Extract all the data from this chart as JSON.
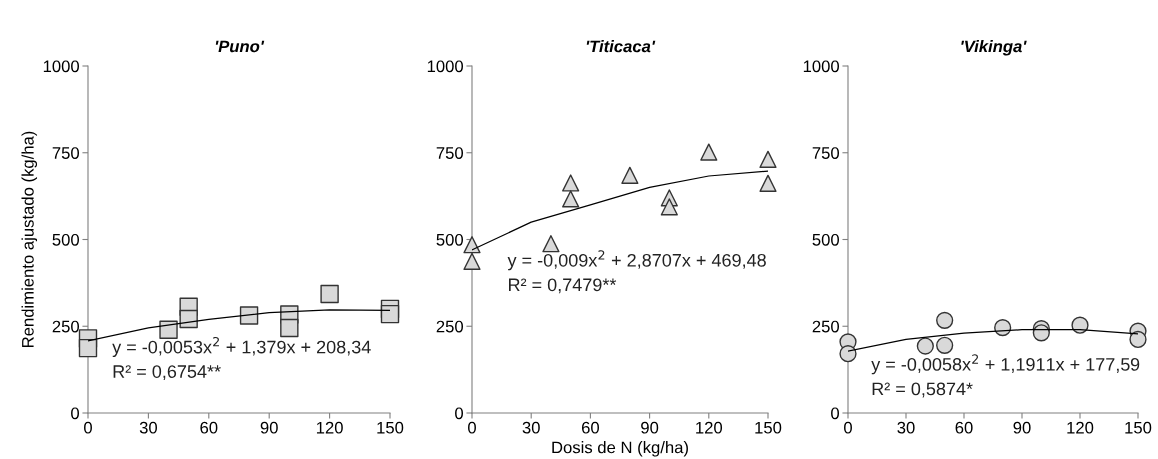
{
  "chart_data": [
    {
      "type": "scatter",
      "title": "'Puno'",
      "ylabel": "Rendimiento ajustado (kg/ha)",
      "xlim": [
        0,
        150
      ],
      "xticks": [
        0,
        30,
        60,
        90,
        120,
        150
      ],
      "ylim": [
        0,
        1000
      ],
      "yticks": [
        0,
        250,
        500,
        750,
        1000
      ],
      "grid": false,
      "legend": false,
      "series": [
        {
          "type": "scatter",
          "marker": "square",
          "color": "#d9d9d9",
          "x": [
            0,
            0,
            40,
            50,
            50,
            80,
            100,
            100,
            120,
            150,
            150
          ],
          "values": [
            215,
            187,
            240,
            306,
            271,
            281,
            284,
            245,
            343,
            300,
            285
          ]
        },
        {
          "type": "line",
          "marker": "none",
          "color": "#000000",
          "x": [
            0,
            30,
            60,
            90,
            120,
            150
          ],
          "values": [
            208,
            245,
            270,
            289,
            297,
            296
          ]
        }
      ],
      "annotations": [
        "y = -0,0053x$^{2}$ + 1,379x + 208,34",
        "R² = 0,6754**"
      ]
    },
    {
      "type": "scatter",
      "title": "'Titicaca'",
      "xlabel": "Dosis de N (kg/ha)",
      "xlim": [
        0,
        150
      ],
      "xticks": [
        0,
        30,
        60,
        90,
        120,
        150
      ],
      "ylim": [
        0,
        1000
      ],
      "yticks": [
        0,
        250,
        500,
        750,
        1000
      ],
      "grid": false,
      "legend": false,
      "series": [
        {
          "type": "scatter",
          "marker": "triangle",
          "color": "#d9d9d9",
          "x": [
            0,
            0,
            40,
            50,
            50,
            80,
            100,
            100,
            120,
            150,
            150
          ],
          "values": [
            485,
            437,
            488,
            663,
            617,
            685,
            620,
            594,
            752,
            731,
            662
          ]
        },
        {
          "type": "line",
          "marker": "none",
          "color": "#000000",
          "x": [
            0,
            30,
            60,
            90,
            120,
            150
          ],
          "values": [
            470,
            550,
            600,
            650,
            683,
            697
          ]
        }
      ],
      "annotations": [
        "y = -0,009x$^{2}$ + 2,8707x + 469,48",
        "R² = 0,7479**"
      ]
    },
    {
      "type": "scatter",
      "title": "'Vikinga'",
      "xlim": [
        0,
        150
      ],
      "xticks": [
        0,
        30,
        60,
        90,
        120,
        150
      ],
      "ylim": [
        0,
        1000
      ],
      "yticks": [
        0,
        250,
        500,
        750,
        1000
      ],
      "grid": false,
      "legend": false,
      "series": [
        {
          "type": "scatter",
          "marker": "circle",
          "color": "#d9d9d9",
          "x": [
            0,
            0,
            40,
            50,
            50,
            80,
            100,
            100,
            120,
            150,
            150
          ],
          "values": [
            205,
            171,
            193,
            267,
            195,
            246,
            243,
            231,
            253,
            236,
            212
          ]
        },
        {
          "type": "line",
          "marker": "none",
          "color": "#000000",
          "x": [
            0,
            30,
            60,
            90,
            120,
            150
          ],
          "values": [
            178,
            212,
            230,
            240,
            240,
            228
          ]
        }
      ],
      "annotations": [
        "y = -0,0058x$^{2}$ + 1,1911x + 177,59",
        "R² = 0,5874*"
      ]
    }
  ]
}
